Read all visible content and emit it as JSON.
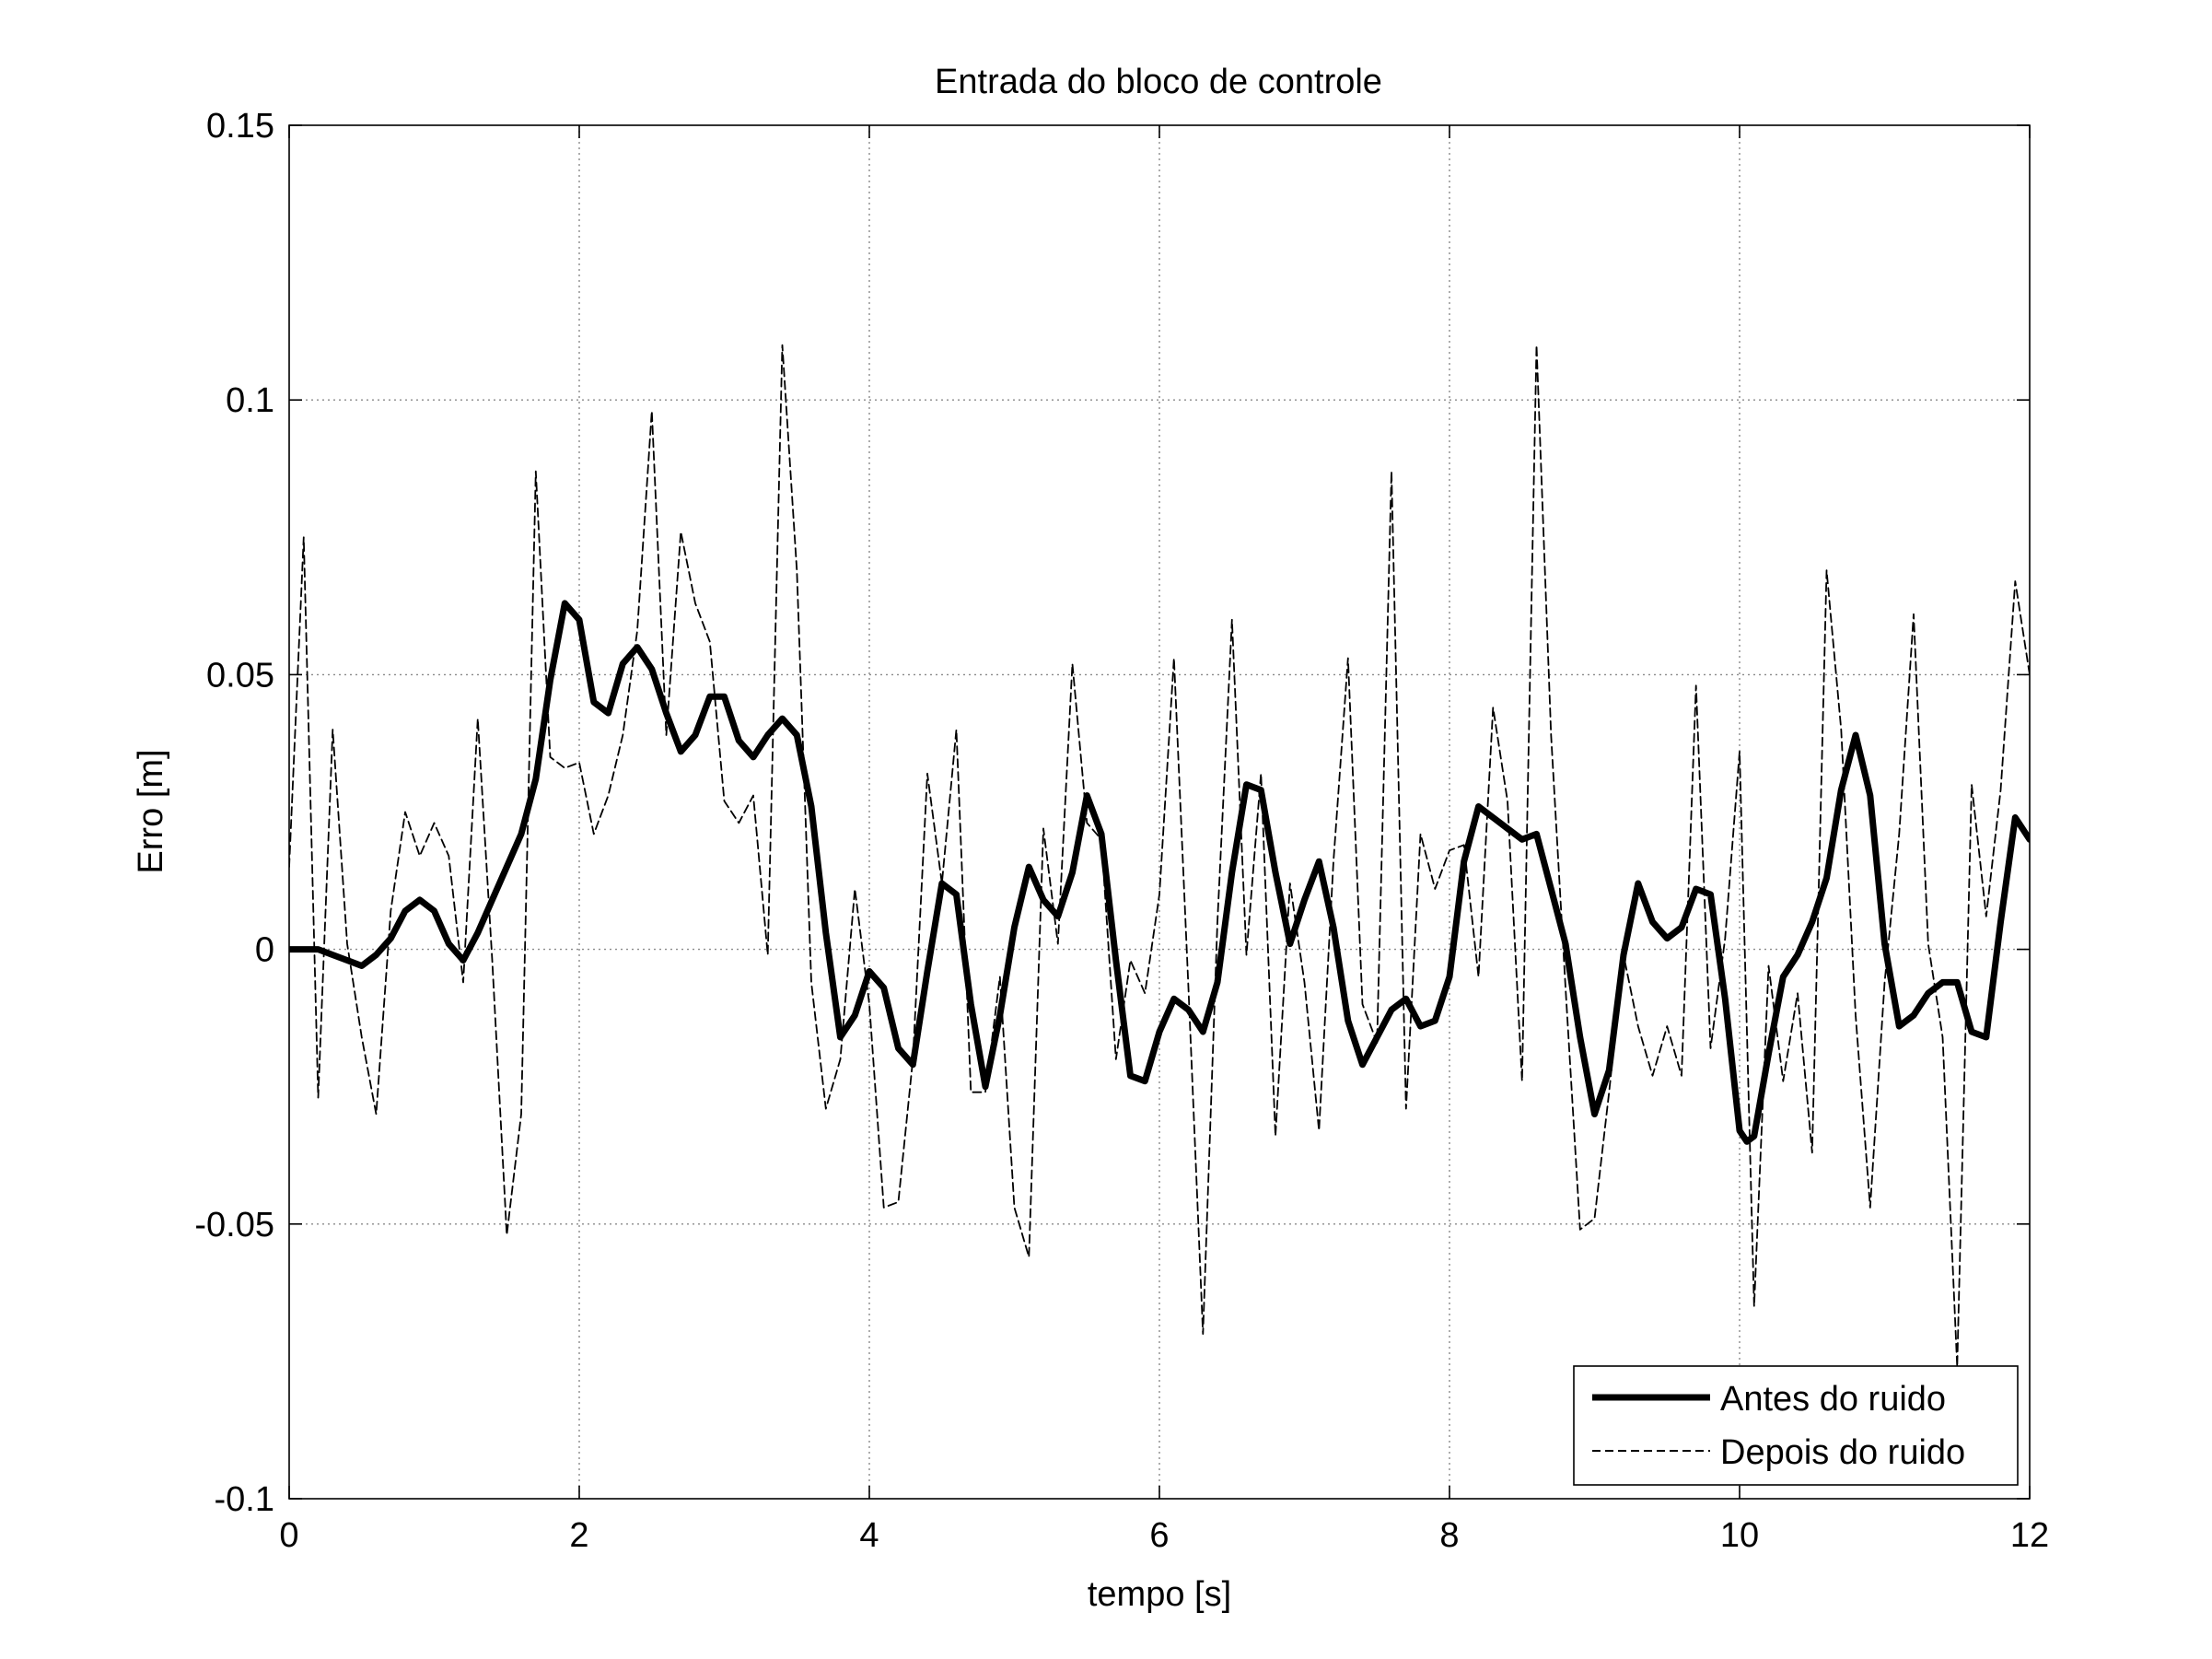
{
  "chart_data": {
    "type": "line",
    "title": "Entrada do bloco de controle",
    "xlabel": "tempo [s]",
    "ylabel": "Erro [m]",
    "xlim": [
      0,
      12
    ],
    "ylim": [
      -0.1,
      0.15
    ],
    "xticks": [
      0,
      2,
      4,
      6,
      8,
      10,
      12
    ],
    "xtick_labels": [
      "0",
      "2",
      "4",
      "6",
      "8",
      "10",
      "12"
    ],
    "yticks": [
      -0.1,
      -0.05,
      0,
      0.05,
      0.1,
      0.15
    ],
    "ytick_labels": [
      "-0.1",
      "-0.05",
      "0",
      "0.05",
      "0.1",
      "0.15"
    ],
    "grid": true,
    "legend_position": "bottom-right",
    "series": [
      {
        "name": "Antes do ruido",
        "style": "solid-thick",
        "color": "#000000",
        "x": [
          0,
          0.1,
          0.2,
          0.3,
          0.4,
          0.5,
          0.6,
          0.7,
          0.8,
          0.9,
          1.0,
          1.1,
          1.2,
          1.3,
          1.4,
          1.5,
          1.6,
          1.7,
          1.8,
          1.9,
          2.0,
          2.1,
          2.2,
          2.3,
          2.4,
          2.5,
          2.6,
          2.7,
          2.8,
          2.9,
          3.0,
          3.1,
          3.2,
          3.3,
          3.4,
          3.5,
          3.6,
          3.7,
          3.8,
          3.9,
          4.0,
          4.1,
          4.2,
          4.3,
          4.4,
          4.5,
          4.6,
          4.7,
          4.8,
          4.9,
          5.0,
          5.1,
          5.2,
          5.3,
          5.4,
          5.5,
          5.6,
          5.7,
          5.8,
          5.9,
          6.0,
          6.1,
          6.2,
          6.3,
          6.4,
          6.5,
          6.6,
          6.7,
          6.8,
          6.9,
          7.0,
          7.1,
          7.2,
          7.3,
          7.4,
          7.5,
          7.6,
          7.7,
          7.8,
          7.9,
          8.0,
          8.1,
          8.2,
          8.3,
          8.4,
          8.5,
          8.6,
          8.7,
          8.8,
          8.9,
          9.0,
          9.1,
          9.2,
          9.3,
          9.4,
          9.5,
          9.6,
          9.7,
          9.8,
          9.9,
          10.0,
          10.05,
          10.1,
          10.2,
          10.3,
          10.4,
          10.5,
          10.6,
          10.7,
          10.8,
          10.9,
          11.0,
          11.1,
          11.2,
          11.3,
          11.4,
          11.5,
          11.6,
          11.7,
          11.8,
          11.9,
          12.0
        ],
        "y": [
          0,
          0,
          0,
          -0.001,
          -0.002,
          -0.003,
          -0.001,
          0.002,
          0.007,
          0.009,
          0.007,
          0.001,
          -0.002,
          0.003,
          0.009,
          0.015,
          0.021,
          0.031,
          0.049,
          0.063,
          0.06,
          0.045,
          0.043,
          0.052,
          0.055,
          0.051,
          0.043,
          0.036,
          0.039,
          0.046,
          0.046,
          0.038,
          0.035,
          0.039,
          0.042,
          0.039,
          0.026,
          0.003,
          -0.016,
          -0.012,
          -0.004,
          -0.007,
          -0.018,
          -0.021,
          -0.004,
          0.012,
          0.01,
          -0.01,
          -0.025,
          -0.012,
          0.004,
          0.015,
          0.009,
          0.006,
          0.014,
          0.028,
          0.021,
          -0.002,
          -0.023,
          -0.024,
          -0.015,
          -0.009,
          -0.011,
          -0.015,
          -0.006,
          0.014,
          0.03,
          0.029,
          0.014,
          0.001,
          0.009,
          0.016,
          0.004,
          -0.013,
          -0.021,
          -0.016,
          -0.011,
          -0.009,
          -0.014,
          -0.013,
          -0.005,
          0.016,
          0.026,
          0.024,
          0.022,
          0.02,
          0.021,
          0.011,
          0.001,
          -0.016,
          -0.03,
          -0.022,
          -0.001,
          0.012,
          0.005,
          0.002,
          0.004,
          0.011,
          0.01,
          -0.009,
          -0.033,
          -0.035,
          -0.034,
          -0.019,
          -0.005,
          -0.001,
          0.005,
          0.013,
          0.029,
          0.039,
          0.028,
          0.001,
          -0.014,
          -0.012,
          -0.008,
          -0.006,
          -0.006,
          -0.015,
          -0.016,
          0.005,
          0.024,
          0.02
        ]
      },
      {
        "name": "Depois do ruido",
        "style": "dashed-thin",
        "color": "#000000",
        "x": [
          0,
          0.1,
          0.2,
          0.3,
          0.4,
          0.5,
          0.6,
          0.7,
          0.8,
          0.9,
          1.0,
          1.1,
          1.2,
          1.3,
          1.4,
          1.5,
          1.6,
          1.7,
          1.8,
          1.9,
          2.0,
          2.1,
          2.2,
          2.3,
          2.4,
          2.5,
          2.6,
          2.7,
          2.8,
          2.9,
          3.0,
          3.1,
          3.2,
          3.3,
          3.4,
          3.5,
          3.6,
          3.7,
          3.8,
          3.9,
          4.0,
          4.1,
          4.2,
          4.3,
          4.4,
          4.5,
          4.6,
          4.7,
          4.8,
          4.9,
          5.0,
          5.1,
          5.2,
          5.3,
          5.4,
          5.5,
          5.6,
          5.7,
          5.8,
          5.9,
          6.0,
          6.1,
          6.2,
          6.3,
          6.4,
          6.5,
          6.6,
          6.7,
          6.8,
          6.9,
          7.0,
          7.1,
          7.2,
          7.3,
          7.4,
          7.5,
          7.6,
          7.7,
          7.8,
          7.9,
          8.0,
          8.1,
          8.2,
          8.3,
          8.4,
          8.5,
          8.6,
          8.7,
          8.8,
          8.9,
          9.0,
          9.1,
          9.2,
          9.3,
          9.4,
          9.5,
          9.6,
          9.7,
          9.8,
          9.9,
          10.0,
          10.1,
          10.2,
          10.3,
          10.4,
          10.5,
          10.6,
          10.7,
          10.8,
          10.9,
          11.0,
          11.1,
          11.2,
          11.3,
          11.4,
          11.5,
          11.6,
          11.7,
          11.8,
          11.9,
          12.0
        ],
        "y": [
          0.015,
          0.075,
          -0.027,
          0.04,
          0.001,
          -0.016,
          -0.03,
          0.007,
          0.025,
          0.017,
          0.023,
          0.017,
          -0.006,
          0.042,
          -0.002,
          -0.052,
          -0.03,
          0.087,
          0.035,
          0.033,
          0.034,
          0.021,
          0.028,
          0.039,
          0.058,
          0.098,
          0.039,
          0.076,
          0.063,
          0.056,
          0.027,
          0.023,
          0.028,
          -0.001,
          0.11,
          0.069,
          -0.006,
          -0.029,
          -0.02,
          0.011,
          -0.01,
          -0.047,
          -0.046,
          -0.02,
          0.032,
          0.012,
          0.04,
          -0.026,
          -0.026,
          -0.005,
          -0.047,
          -0.056,
          0.022,
          0.001,
          0.052,
          0.023,
          0.02,
          -0.02,
          -0.002,
          -0.008,
          0.01,
          0.053,
          -0.007,
          -0.07,
          0.005,
          0.06,
          -0.001,
          0.032,
          -0.034,
          0.012,
          -0.006,
          -0.033,
          0.016,
          0.053,
          -0.01,
          -0.017,
          0.087,
          -0.029,
          0.021,
          0.011,
          0.018,
          0.019,
          -0.005,
          0.044,
          0.027,
          -0.024,
          0.11,
          0.039,
          -0.007,
          -0.051,
          -0.049,
          -0.026,
          -0.001,
          -0.014,
          -0.023,
          -0.014,
          -0.023,
          0.048,
          -0.018,
          0.002,
          0.036,
          -0.065,
          -0.003,
          -0.024,
          -0.008,
          -0.037,
          0.069,
          0.04,
          -0.012,
          -0.047,
          -0.006,
          0.021,
          0.061,
          0.001,
          -0.016,
          -0.076,
          0.03,
          0.006,
          0.029,
          0.067,
          0.05
        ]
      }
    ]
  }
}
